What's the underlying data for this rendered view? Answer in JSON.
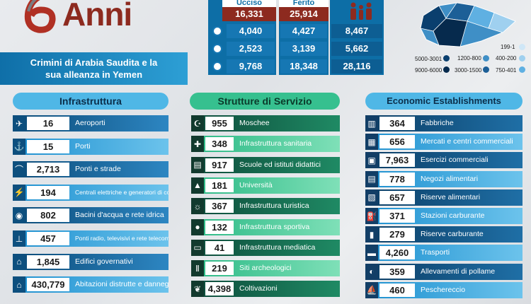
{
  "logo": {
    "number": "6",
    "word": "Anni"
  },
  "title": {
    "line1": "Crimini di Arabia Saudita e la",
    "line2": "sua alleanza in Yemen"
  },
  "casualties": {
    "headers": [
      "Ucciso",
      "Ferito"
    ],
    "top": [
      "16,331",
      "25,914"
    ],
    "rows": [
      {
        "icon": "child-icon",
        "killed": "4,040",
        "injured": "4,427",
        "total": "8,467"
      },
      {
        "icon": "woman-icon",
        "killed": "2,523",
        "injured": "3,139",
        "total": "5,662"
      },
      {
        "icon": "man-icon",
        "killed": "9,768",
        "injured": "18,348",
        "total": "28,116"
      }
    ]
  },
  "map_legend": [
    {
      "label": "199-1",
      "color": "#cfe7f7"
    },
    {
      "label": "1200-800",
      "color": "#3f8fc6"
    },
    {
      "label": "400-200",
      "color": "#9fd0ef"
    },
    {
      "label": "5000-3001",
      "color": "#0a3f6e"
    },
    {
      "label": "9000-6000",
      "color": "#062a4d"
    },
    {
      "label": "3000-1500",
      "color": "#1c5f97"
    },
    {
      "label": "750-401",
      "color": "#5fb0e2"
    }
  ],
  "sections": {
    "infra": {
      "title": "Infrastruttura",
      "items": [
        {
          "value": "16",
          "label": "Aeroporti",
          "icon": "airplane-icon"
        },
        {
          "value": "15",
          "label": "Porti",
          "icon": "anchor-icon"
        },
        {
          "value": "2,713",
          "label": "Ponti e strade",
          "icon": "bridge-icon"
        },
        {
          "value": "194",
          "label": "Centrali elettriche e generatori di corrente",
          "icon": "power-icon"
        },
        {
          "value": "802",
          "label": "Bacini d'acqua e rete idrica",
          "icon": "water-icon"
        },
        {
          "value": "457",
          "label": "Ponti radio, televisivi e rete telecomunicazioni",
          "icon": "antenna-icon"
        },
        {
          "value": "1,845",
          "label": "Edifici governativi",
          "icon": "government-building-icon"
        },
        {
          "value": "430,779",
          "label": "Abitazioni distrutte e danneggiate",
          "icon": "house-icon"
        }
      ]
    },
    "services": {
      "title": "Strutture di Servizio",
      "items": [
        {
          "value": "955",
          "label": "Moschee",
          "icon": "mosque-icon"
        },
        {
          "value": "348",
          "label": "Infrastruttura sanitaria",
          "icon": "hospital-icon"
        },
        {
          "value": "917",
          "label": "Scuole ed istituti didattici",
          "icon": "school-icon"
        },
        {
          "value": "181",
          "label": "Università",
          "icon": "university-icon"
        },
        {
          "value": "367",
          "label": "Infrastruttura turistica",
          "icon": "tourism-icon"
        },
        {
          "value": "132",
          "label": "Infrastruttura sportiva",
          "icon": "sports-icon"
        },
        {
          "value": "41",
          "label": "Infrastruttura mediatica",
          "icon": "tv-icon"
        },
        {
          "value": "219",
          "label": "Siti archeologici",
          "icon": "archaeology-icon"
        },
        {
          "value": "4,398",
          "label": "Coltivazioni",
          "icon": "crop-icon"
        }
      ]
    },
    "economic": {
      "title": "Economic Establishments",
      "items": [
        {
          "value": "364",
          "label": "Fabbriche",
          "icon": "factory-icon"
        },
        {
          "value": "656",
          "label": "Mercati e centri commerciali",
          "icon": "market-icon"
        },
        {
          "value": "7,963",
          "label": "Esercizi commerciali",
          "icon": "shop-icon"
        },
        {
          "value": "778",
          "label": "Negozi alimentari",
          "icon": "grocery-icon"
        },
        {
          "value": "657",
          "label": "Riserve alimentari",
          "icon": "food-storage-icon"
        },
        {
          "value": "371",
          "label": "Stazioni carburante",
          "icon": "fuel-station-icon"
        },
        {
          "value": "279",
          "label": "Riserve carburante",
          "icon": "fuel-tank-icon"
        },
        {
          "value": "4,260",
          "label": "Trasporti",
          "icon": "truck-icon"
        },
        {
          "value": "359",
          "label": "Allevamenti di pollame",
          "icon": "chicken-icon"
        },
        {
          "value": "460",
          "label": "Peschereccio",
          "icon": "boat-icon"
        }
      ]
    }
  }
}
